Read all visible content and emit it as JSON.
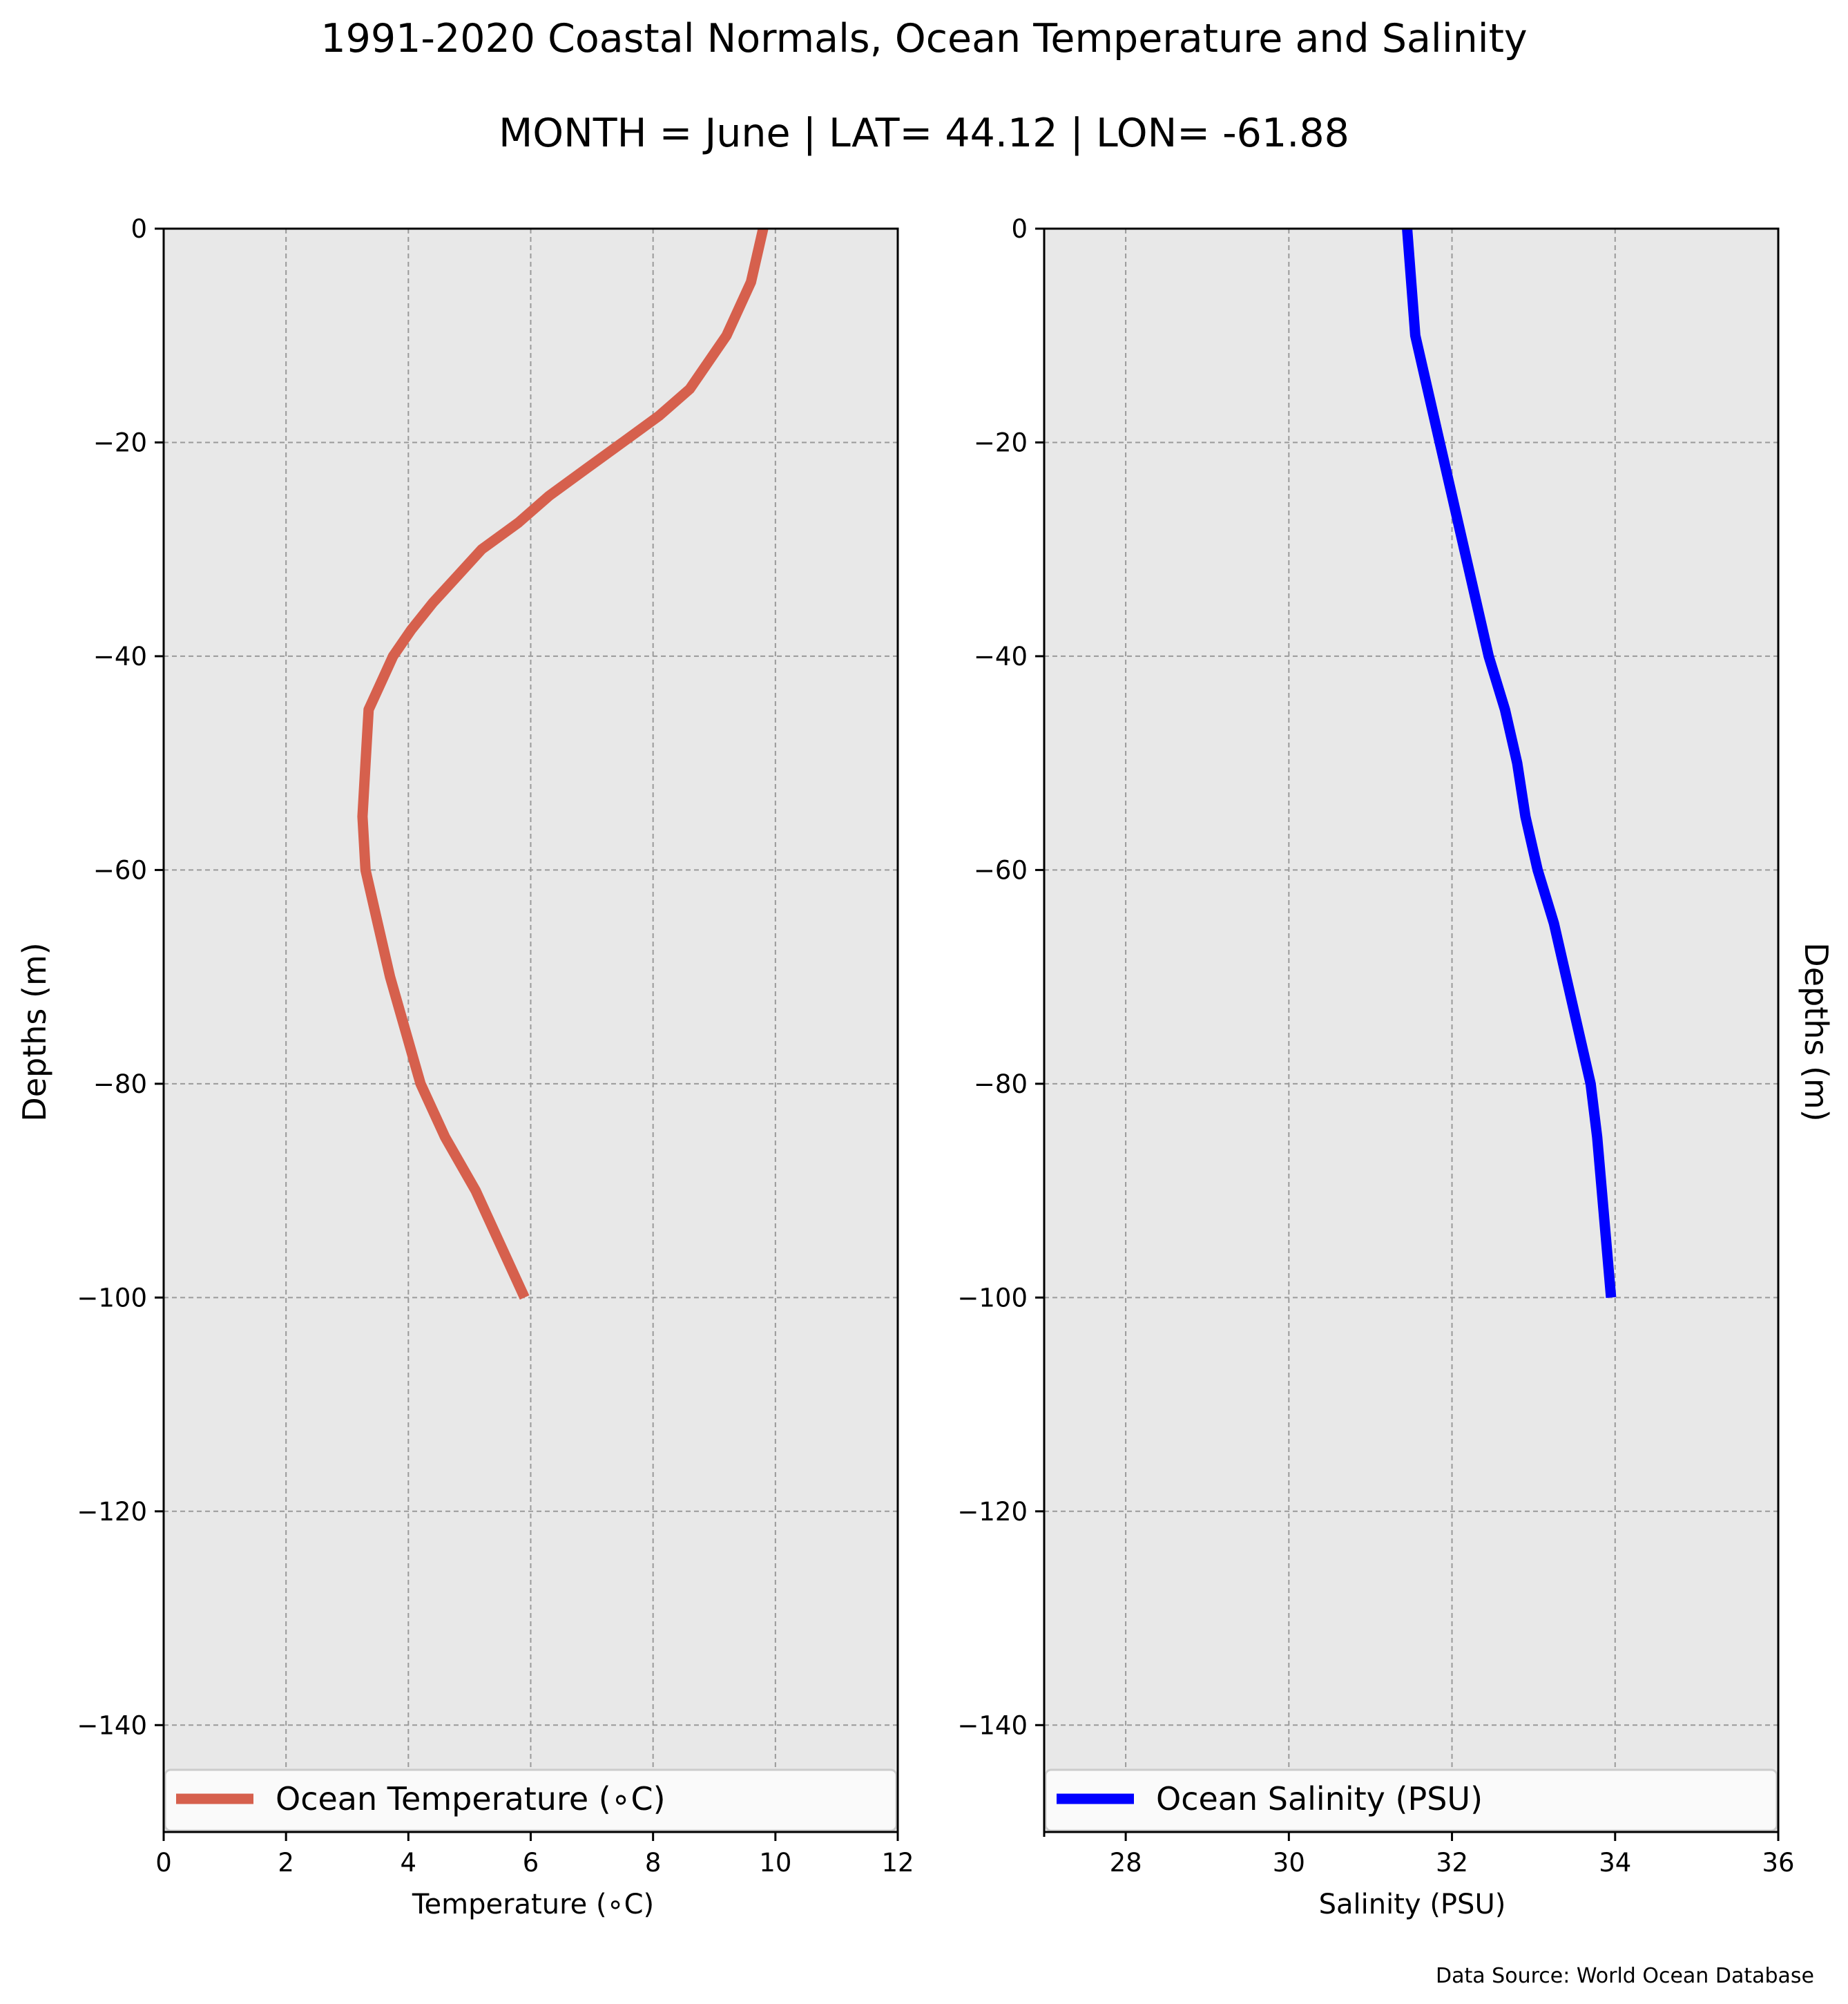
{
  "title": "1991-2020 Coastal Normals, Ocean Temperature and Salinity",
  "subtitle": "MONTH = June | LAT= 44.12 | LON= -61.88",
  "footer": "Data Source: World Ocean Database",
  "chart_data": [
    {
      "type": "line",
      "xlabel": "Temperature (∘C)",
      "ylabel": "Depths (m)",
      "xlim": [
        0,
        12
      ],
      "ylim": [
        -150,
        0
      ],
      "xticks": [
        0,
        2,
        4,
        6,
        8,
        10,
        12
      ],
      "yticks": [
        0,
        -20,
        -40,
        -60,
        -80,
        -100,
        -120,
        -140
      ],
      "xtick_labels": [
        "0",
        "2",
        "4",
        "6",
        "8",
        "10",
        "12"
      ],
      "ytick_labels": [
        "0",
        "−20",
        "−40",
        "−60",
        "−80",
        "−100",
        "−120",
        "−140"
      ],
      "grid": true,
      "legend_position": "bottom",
      "series": [
        {
          "name": "Ocean Temperature (∘C)",
          "color": "#d6604d",
          "x": [
            9.8,
            9.6,
            9.2,
            8.6,
            8.1,
            7.5,
            6.9,
            6.3,
            5.8,
            5.2,
            4.8,
            4.4,
            4.05,
            3.75,
            3.55,
            3.35,
            3.3,
            3.25,
            3.3,
            3.5,
            3.7,
            3.95,
            4.2,
            4.6,
            5.1,
            5.5,
            5.9
          ],
          "y": [
            0,
            -5,
            -10,
            -15,
            -17.5,
            -20,
            -22.5,
            -25,
            -27.5,
            -30,
            -32.5,
            -35,
            -37.5,
            -40,
            -42.5,
            -45,
            -50,
            -55,
            -60,
            -65,
            -70,
            -75,
            -80,
            -85,
            -90,
            -95,
            -100
          ]
        }
      ]
    },
    {
      "type": "line",
      "xlabel": "Salinity (PSU)",
      "ylabel": "Depths (m)",
      "xlim": [
        27,
        36
      ],
      "ylim": [
        -150,
        0
      ],
      "xticks": [
        28,
        30,
        32,
        34,
        36
      ],
      "yticks": [
        0,
        -20,
        -40,
        -60,
        -80,
        -100,
        -120,
        -140
      ],
      "xtick_labels": [
        "28",
        "30",
        "32",
        "34",
        "36"
      ],
      "ytick_labels": [
        "0",
        "−20",
        "−40",
        "−60",
        "−80",
        "−100",
        "−120",
        "−140"
      ],
      "grid": true,
      "legend_position": "bottom",
      "series": [
        {
          "name": "Ocean Salinity (PSU)",
          "color": "#0000ff",
          "x": [
            31.45,
            31.5,
            31.55,
            31.7,
            31.85,
            32.0,
            32.15,
            32.3,
            32.45,
            32.65,
            32.8,
            32.9,
            33.05,
            33.25,
            33.4,
            33.55,
            33.7,
            33.78,
            33.95
          ],
          "y": [
            0,
            -5,
            -10,
            -15,
            -20,
            -25,
            -30,
            -35,
            -40,
            -45,
            -50,
            -55,
            -60,
            -65,
            -70,
            -75,
            -80,
            -85,
            -100
          ]
        }
      ]
    }
  ]
}
